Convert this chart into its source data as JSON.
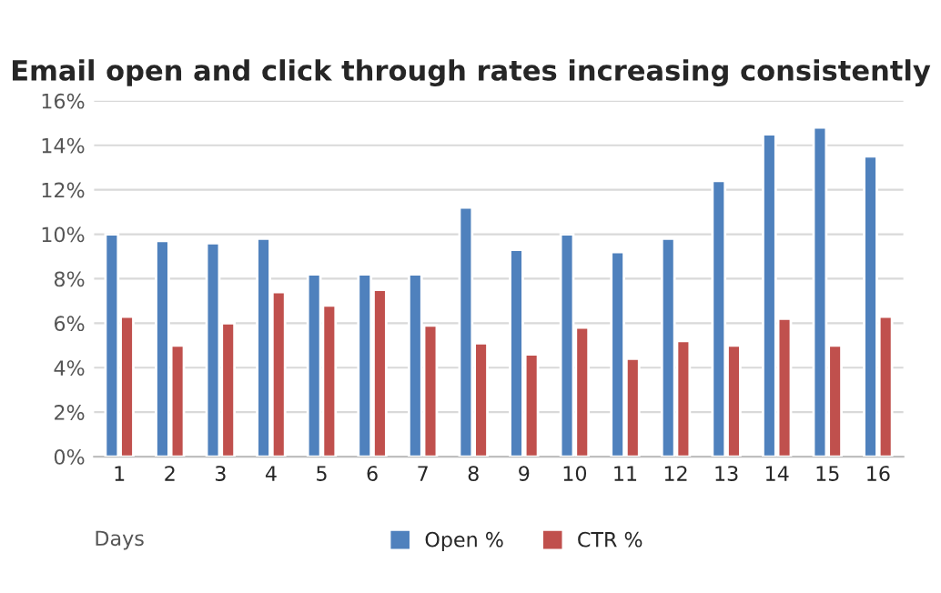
{
  "chart_data": {
    "type": "bar",
    "title": "Email open and click through rates increasing consistently",
    "xlabel": "Days",
    "categories": [
      "1",
      "2",
      "3",
      "4",
      "5",
      "6",
      "7",
      "8",
      "9",
      "10",
      "11",
      "12",
      "13",
      "14",
      "15",
      "16"
    ],
    "series": [
      {
        "name": "Open %",
        "color": "#4f81bd",
        "values": [
          10.0,
          9.7,
          9.6,
          9.8,
          8.2,
          8.2,
          8.2,
          11.2,
          9.3,
          10.0,
          9.2,
          9.8,
          12.4,
          14.5,
          14.8,
          13.5
        ]
      },
      {
        "name": "CTR %",
        "color": "#c0504d",
        "values": [
          6.3,
          5.0,
          6.0,
          7.4,
          6.8,
          7.5,
          5.9,
          5.1,
          4.6,
          5.8,
          4.4,
          5.2,
          5.0,
          6.2,
          5.0,
          6.3
        ]
      }
    ],
    "ylim": [
      0,
      16
    ],
    "yticks": [
      {
        "value": 0,
        "label": "0%"
      },
      {
        "value": 2,
        "label": "2%"
      },
      {
        "value": 4,
        "label": "4%"
      },
      {
        "value": 6,
        "label": "6%"
      },
      {
        "value": 8,
        "label": "8%"
      },
      {
        "value": 10,
        "label": "10%"
      },
      {
        "value": 12,
        "label": "12%"
      },
      {
        "value": 14,
        "label": "14%"
      },
      {
        "value": 16,
        "label": "16%"
      }
    ],
    "grid": "y",
    "legend": "bottom"
  }
}
